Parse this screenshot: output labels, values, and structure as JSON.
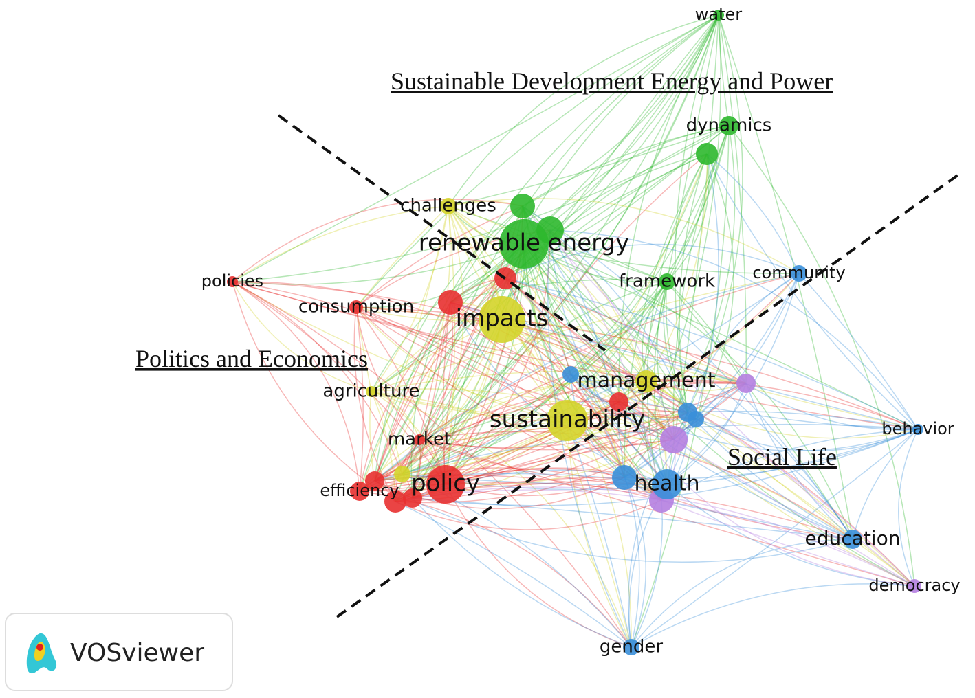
{
  "clusters": [
    {
      "title": "Sustainable Development Energy and Power",
      "color": "#2eb82e"
    },
    {
      "title": "Politics and Economics",
      "color": "#e83030"
    },
    {
      "title": "Social Life",
      "color": "#3a8fd9"
    },
    {
      "color": "#d4d42a"
    },
    {
      "color": "#b57fe0"
    }
  ],
  "nodes": [
    {
      "label": "water",
      "cluster": 0
    },
    {
      "label": "dynamics",
      "cluster": 0
    },
    {
      "label": "renewable energy",
      "cluster": 0
    },
    {
      "label": "framework",
      "cluster": 0
    },
    {
      "label": "challenges",
      "cluster": 3
    },
    {
      "label": "impacts",
      "cluster": 3
    },
    {
      "label": "agriculture",
      "cluster": 3
    },
    {
      "label": "sustainability",
      "cluster": 3
    },
    {
      "label": "management",
      "cluster": 3
    },
    {
      "label": "policies",
      "cluster": 1
    },
    {
      "label": "consumption",
      "cluster": 1
    },
    {
      "label": "market",
      "cluster": 1
    },
    {
      "label": "efficiency",
      "cluster": 1
    },
    {
      "label": "policy",
      "cluster": 1
    },
    {
      "label": "community",
      "cluster": 2
    },
    {
      "label": "health",
      "cluster": 2
    },
    {
      "label": "behavior",
      "cluster": 2
    },
    {
      "label": "education",
      "cluster": 2
    },
    {
      "label": "gender",
      "cluster": 2
    },
    {
      "label": "democracy",
      "cluster": 4
    }
  ],
  "logo": "VOSviewer"
}
